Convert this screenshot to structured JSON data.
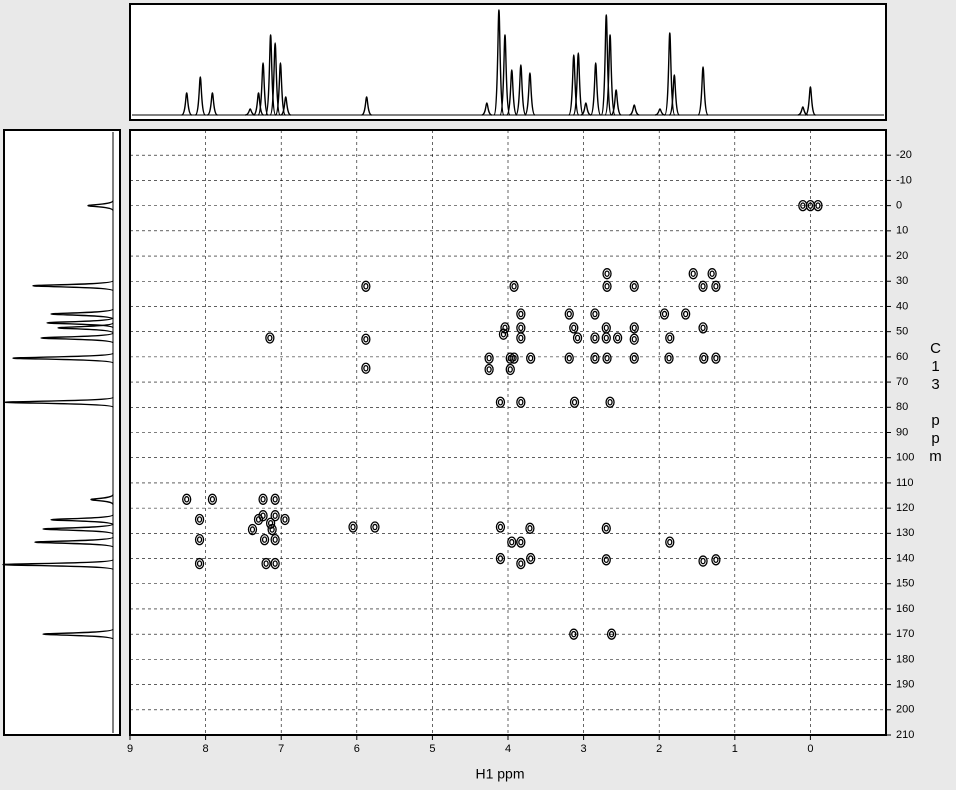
{
  "chart_data": {
    "type": "scatter",
    "x_label": "H1 ppm",
    "y_label": "C13 ppm",
    "xlim": [
      9,
      -1
    ],
    "ylim": [
      -30,
      210
    ],
    "xticks": [
      9,
      8,
      7,
      6,
      5,
      4,
      3,
      2,
      1,
      0
    ],
    "yticks": [
      -20,
      -10,
      0,
      10,
      20,
      30,
      40,
      50,
      60,
      70,
      80,
      90,
      100,
      110,
      120,
      130,
      140,
      150,
      160,
      170,
      180,
      190,
      200,
      210
    ],
    "grid": true,
    "color": "#000000",
    "x": [
      0.1,
      0,
      -0.1,
      2.69,
      2.69,
      5.88,
      3.92,
      2.33,
      1.55,
      1.3,
      1.25,
      1.42,
      3.83,
      3.19,
      2.85,
      1.93,
      1.65,
      4.04,
      3.83,
      3.13,
      2.7,
      2.33,
      1.42,
      7.15,
      5.88,
      4.06,
      3.83,
      3.08,
      2.85,
      2.7,
      2.33,
      2.55,
      1.86,
      4.25,
      3.97,
      3.92,
      3.7,
      3.19,
      2.85,
      2.69,
      2.33,
      1.87,
      1.41,
      1.25,
      5.88,
      4.25,
      3.97,
      4.1,
      3.83,
      3.12,
      2.65,
      8.25,
      7.91,
      7.08,
      7.24,
      8.08,
      7.24,
      7.08,
      6.95,
      7.3,
      7.14,
      7.38,
      7.12,
      7.08,
      8.08,
      7.22,
      6.05,
      5.76,
      4.1,
      3.71,
      2.7,
      3.95,
      3.83,
      1.86,
      8.08,
      7.2,
      7.08,
      4.1,
      3.83,
      3.7,
      2.7,
      1.42,
      1.25,
      3.13,
      2.63
    ],
    "y": [
      0,
      0,
      0,
      27,
      32,
      32,
      32,
      32,
      27,
      27,
      32,
      32,
      43,
      43,
      43,
      43,
      43,
      48.5,
      48.5,
      48.5,
      48.5,
      48.5,
      48.5,
      52.5,
      53,
      51,
      52.5,
      52.5,
      52.5,
      52.5,
      53,
      52.5,
      52.5,
      60.5,
      60.5,
      60.5,
      60.5,
      60.5,
      60.5,
      60.5,
      60.5,
      60.5,
      60.5,
      60.5,
      64.5,
      65,
      65,
      78,
      78,
      78,
      78,
      116.5,
      116.5,
      116.5,
      116.5,
      124.5,
      123,
      123,
      124.5,
      124.5,
      126,
      128.5,
      128.5,
      132.5,
      132.5,
      132.5,
      127.5,
      127.5,
      127.5,
      128,
      128,
      133.5,
      133.5,
      133.5,
      142,
      142,
      142,
      140,
      142,
      140,
      140.5,
      141,
      140.5,
      170,
      170
    ],
    "top_spectrum": {
      "x": [
        8.25,
        8.07,
        7.91,
        7.41,
        7.3,
        7.24,
        7.14,
        7.08,
        7.01,
        6.94,
        5.87,
        4.28,
        4.12,
        4.04,
        3.95,
        3.83,
        3.71,
        3.13,
        3.07,
        2.97,
        2.84,
        2.7,
        2.65,
        2.57,
        2.33,
        1.99,
        1.86,
        1.8,
        1.42,
        0.1,
        0
      ],
      "values": [
        22,
        38,
        22,
        6,
        22,
        52,
        80,
        72,
        52,
        18,
        18,
        12,
        105,
        80,
        45,
        50,
        42,
        60,
        62,
        12,
        52,
        100,
        80,
        25,
        10,
        6,
        82,
        40,
        48,
        8,
        28
      ]
    },
    "left_spectrum": {
      "y": [
        0,
        31.8,
        43,
        46.5,
        48.5,
        52.5,
        60.5,
        78,
        116.6,
        124.6,
        128.3,
        133.5,
        142.4,
        170
      ],
      "values": [
        25,
        80,
        62,
        66,
        55,
        72,
        100,
        108,
        22,
        62,
        70,
        78,
        110,
        70
      ]
    }
  }
}
